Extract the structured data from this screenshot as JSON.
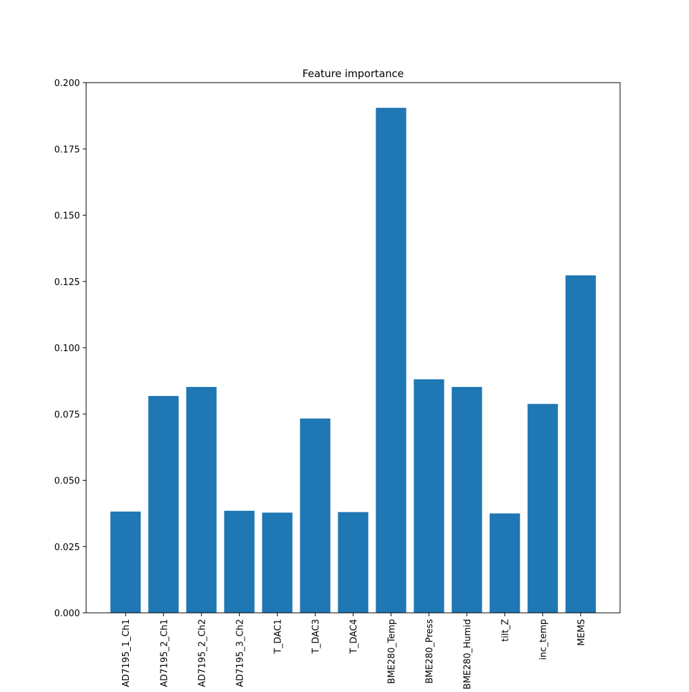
{
  "chart_data": {
    "type": "bar",
    "title": "Feature importance",
    "xlabel": "",
    "ylabel": "",
    "ylim": [
      0,
      0.2
    ],
    "yticks": [
      0.0,
      0.025,
      0.05,
      0.075,
      0.1,
      0.125,
      0.15,
      0.175,
      0.2
    ],
    "ytick_labels": [
      "0.000",
      "0.025",
      "0.050",
      "0.075",
      "0.100",
      "0.125",
      "0.150",
      "0.175",
      "0.200"
    ],
    "categories": [
      "AD7195_1_Ch1",
      "AD7195_2_Ch1",
      "AD7195_2_Ch2",
      "AD7195_3_Ch2",
      "T_DAC1",
      "T_DAC3",
      "T_DAC4",
      "BME280_Temp",
      "BME280_Press",
      "BME280_Humid",
      "tilt_Z",
      "inc_temp",
      "MEMS"
    ],
    "values": [
      0.0382,
      0.0818,
      0.0852,
      0.0385,
      0.0378,
      0.0733,
      0.038,
      0.1905,
      0.0881,
      0.0852,
      0.0375,
      0.0788,
      0.1273
    ],
    "bar_color": "#1f77b4",
    "grid": false,
    "legend": "none"
  }
}
